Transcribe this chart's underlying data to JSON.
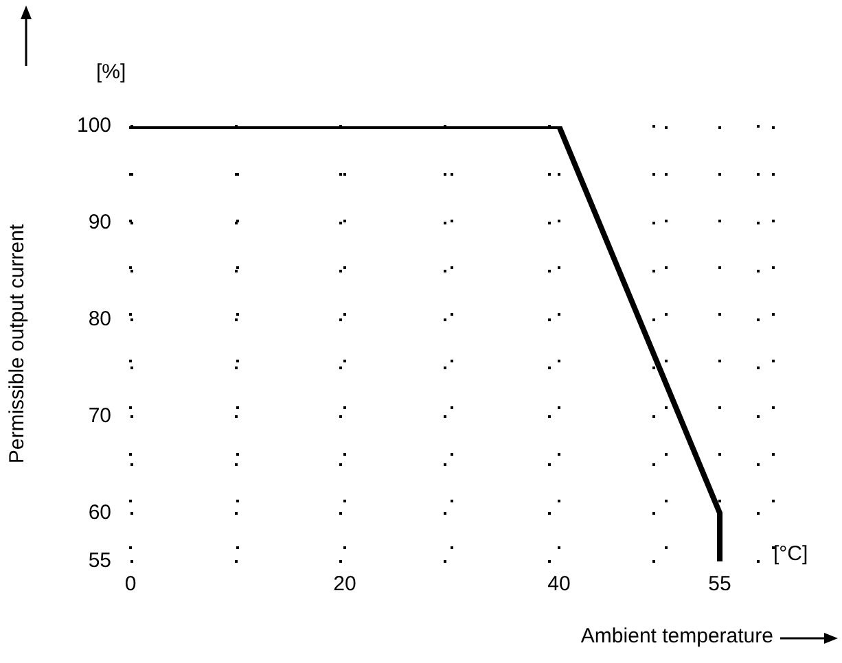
{
  "chart_data": {
    "type": "line",
    "xlabel": "Ambient temperature",
    "ylabel": "Permissible output current",
    "annotations": [
      "[%]",
      "[°C]"
    ],
    "x": [
      0,
      40,
      55,
      55
    ],
    "series": [
      {
        "color": "#000000",
        "values": [
          100,
          100,
          60,
          55
        ]
      }
    ],
    "xlim": [
      0,
      60
    ],
    "xticks": [
      0,
      {
        "value": 10,
        "label": null
      },
      20,
      {
        "value": 30,
        "label": null
      },
      40,
      {
        "value": 50,
        "label": null
      },
      55,
      {
        "value": 60,
        "label": null
      }
    ],
    "ylim": [
      55,
      100
    ],
    "yticks": [
      55,
      60,
      {
        "value": 65,
        "label": null
      },
      70,
      {
        "value": 75,
        "label": null
      },
      80,
      {
        "value": 85,
        "label": null
      },
      90,
      {
        "value": 95,
        "label": null
      },
      100
    ],
    "grid": true,
    "legend": false,
    "marker": "none",
    "line_style": "solid"
  }
}
